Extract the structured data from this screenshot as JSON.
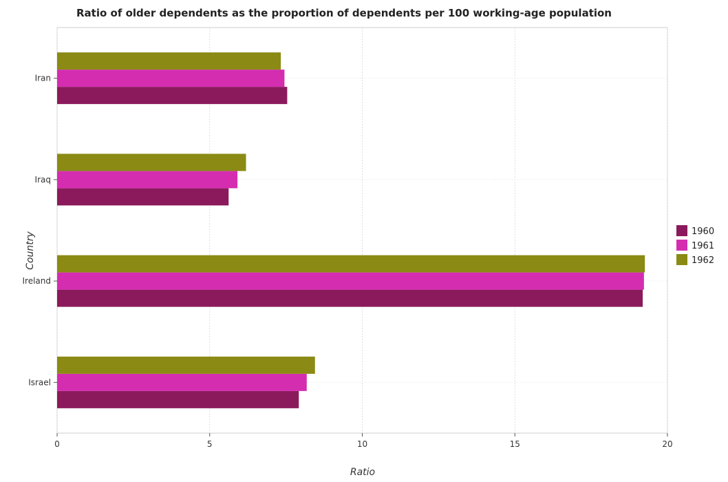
{
  "chart_data": {
    "type": "bar",
    "orientation": "horizontal",
    "title": "Ratio of older dependents as the proportion of dependents per 100 working-age population",
    "xlabel": "Ratio",
    "ylabel": "Country",
    "categories": [
      "Iran",
      "Iraq",
      "Ireland",
      "Israel"
    ],
    "series": [
      {
        "name": "1960",
        "color": "#8b1a5c",
        "values": [
          7.54,
          5.62,
          19.19,
          7.92
        ]
      },
      {
        "name": "1961",
        "color": "#d42db0",
        "values": [
          7.45,
          5.91,
          19.23,
          8.18
        ]
      },
      {
        "name": "1962",
        "color": "#8a8a14",
        "values": [
          7.33,
          6.19,
          19.26,
          8.45
        ]
      }
    ],
    "xlim": [
      0,
      20
    ],
    "xticks": [
      0,
      5,
      10,
      15,
      20
    ],
    "grid": true,
    "legend_position": "right"
  }
}
